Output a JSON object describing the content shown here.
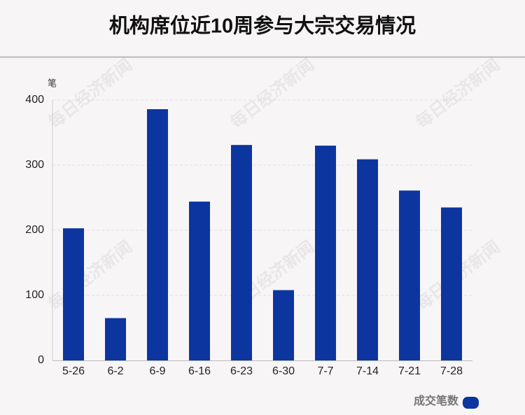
{
  "chart_data": {
    "type": "bar",
    "title": "机构席位近10周参与大宗交易情况",
    "y_label": "笔",
    "categories": [
      "5-26",
      "6-2",
      "6-9",
      "6-16",
      "6-23",
      "6-30",
      "7-7",
      "7-14",
      "7-21",
      "7-28"
    ],
    "series": [
      {
        "name": "成交笔数",
        "color": "#0d35a0",
        "values": [
          203,
          65,
          386,
          244,
          331,
          108,
          330,
          309,
          261,
          235
        ]
      }
    ],
    "ylim": [
      0,
      400
    ],
    "yticks": [
      0,
      100,
      200,
      300,
      400
    ],
    "grid": true,
    "legend": "bottom-right",
    "watermark": "每日经济新闻"
  }
}
